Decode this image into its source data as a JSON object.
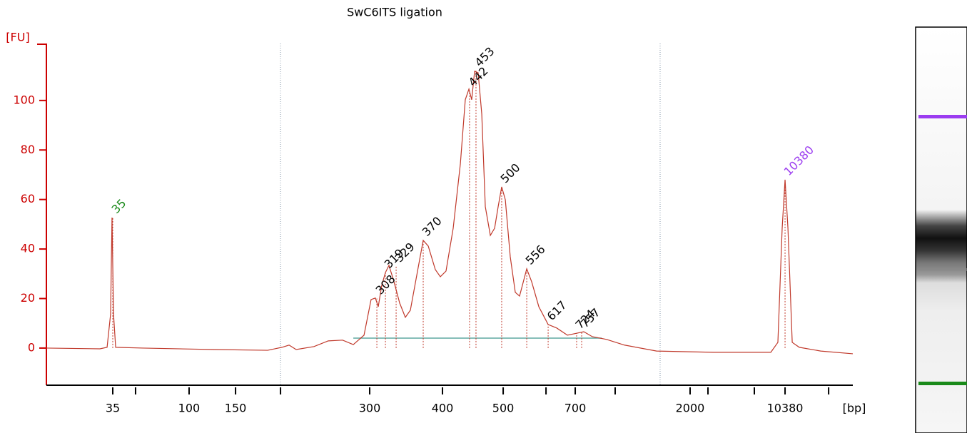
{
  "chart_data": {
    "type": "line",
    "title": "SwC6ITS ligation",
    "y_label": "[FU]",
    "x_label": "[bp]",
    "xlim": [
      40,
      115.33
    ],
    "ylim": [
      -15,
      123
    ],
    "yticks": [
      0,
      20,
      40,
      60,
      80,
      100
    ],
    "xticks": [
      {
        "value": 46.2,
        "label": "35"
      },
      {
        "value": 53.33,
        "label": "100"
      },
      {
        "value": 57.67,
        "label": "150"
      },
      {
        "value": 70.2,
        "label": "300"
      },
      {
        "value": 77,
        "label": "400"
      },
      {
        "value": 82.67,
        "label": "500"
      },
      {
        "value": 89.4,
        "label": "700"
      },
      {
        "value": 100.13,
        "label": "2000"
      },
      {
        "value": 109,
        "label": "10380"
      }
    ],
    "xticks_minor": [
      48.33,
      61.87,
      86.67,
      93.13,
      101.8,
      106.13,
      113.07
    ],
    "dividers": [
      61.87,
      97.33
    ],
    "color": "#c0392b",
    "x": [
      40,
      45,
      45.67,
      46,
      46.13,
      46.27,
      46.47,
      49,
      55.67,
      60.67,
      62,
      62.67,
      63.33,
      65,
      66.33,
      67.67,
      68.67,
      69.67,
      70.33,
      70.73,
      71,
      71.33,
      71.67,
      72,
      72.47,
      73,
      73.53,
      74,
      74.67,
      75.2,
      75.67,
      76.33,
      76.8,
      77.33,
      78,
      78.67,
      79.13,
      79.47,
      79.73,
      80,
      80.33,
      80.67,
      81,
      81.47,
      81.87,
      82.2,
      82.53,
      82.87,
      83.33,
      83.8,
      84.2,
      84.87,
      85.33,
      86,
      86.87,
      87.67,
      88.67,
      89.33,
      90.2,
      91,
      92.33,
      94,
      97,
      102.33,
      107.67,
      108.33,
      108.73,
      109,
      109.27,
      109.67,
      110.33,
      112.33,
      115.33
    ],
    "values": [
      0,
      -0.3,
      0.3,
      13.8,
      52.7,
      13.8,
      0.3,
      0,
      -0.6,
      -0.9,
      0.3,
      1.2,
      -0.6,
      0.6,
      2.9,
      3.2,
      1.4,
      5.2,
      19.6,
      20.2,
      16.7,
      25.4,
      30.5,
      33.4,
      26.8,
      18.2,
      12.4,
      15.3,
      31.1,
      43.5,
      41.2,
      31.7,
      28.8,
      31.1,
      48.4,
      74.4,
      100.3,
      104.6,
      100.3,
      111.8,
      111.2,
      94.5,
      57.1,
      45.5,
      48.4,
      57.1,
      65.1,
      59.9,
      36.9,
      22.5,
      21,
      32,
      26.8,
      16.7,
      9.5,
      8.1,
      5.2,
      5.8,
      6.6,
      4.6,
      3.5,
      1.2,
      -1.2,
      -1.7,
      -1.7,
      2.3,
      48.4,
      68,
      48.4,
      2.3,
      0.3,
      -1.2,
      -2.3
    ],
    "smear_region": {
      "x": [
        68.67,
        91.87
      ],
      "value": 4
    },
    "peaks": [
      {
        "bp": 35,
        "x": 46.2,
        "value": 52.7,
        "color": "#1a8a1a"
      },
      {
        "bp": 308,
        "x": 70.87,
        "value": 20,
        "color": "#000000"
      },
      {
        "bp": 319,
        "x": 71.67,
        "value": 30.5,
        "color": "#000000"
      },
      {
        "bp": 329,
        "x": 72.67,
        "value": 33,
        "color": "#000000"
      },
      {
        "bp": 370,
        "x": 75.2,
        "value": 43.5,
        "color": "#000000"
      },
      {
        "bp": 442,
        "x": 79.53,
        "value": 104,
        "color": "#000000"
      },
      {
        "bp": 453,
        "x": 80.13,
        "value": 112,
        "color": "#000000"
      },
      {
        "bp": 500,
        "x": 82.53,
        "value": 65,
        "color": "#000000"
      },
      {
        "bp": 556,
        "x": 84.87,
        "value": 32,
        "color": "#000000"
      },
      {
        "bp": 617,
        "x": 86.87,
        "value": 9.5,
        "color": "#000000"
      },
      {
        "bp": 724,
        "x": 89.53,
        "value": 6,
        "color": "#000000"
      },
      {
        "bp": 757,
        "x": 90,
        "value": 6.5,
        "color": "#000000"
      },
      {
        "bp": 10380,
        "x": 109,
        "value": 68,
        "color": "#9b3cf0"
      }
    ]
  }
}
